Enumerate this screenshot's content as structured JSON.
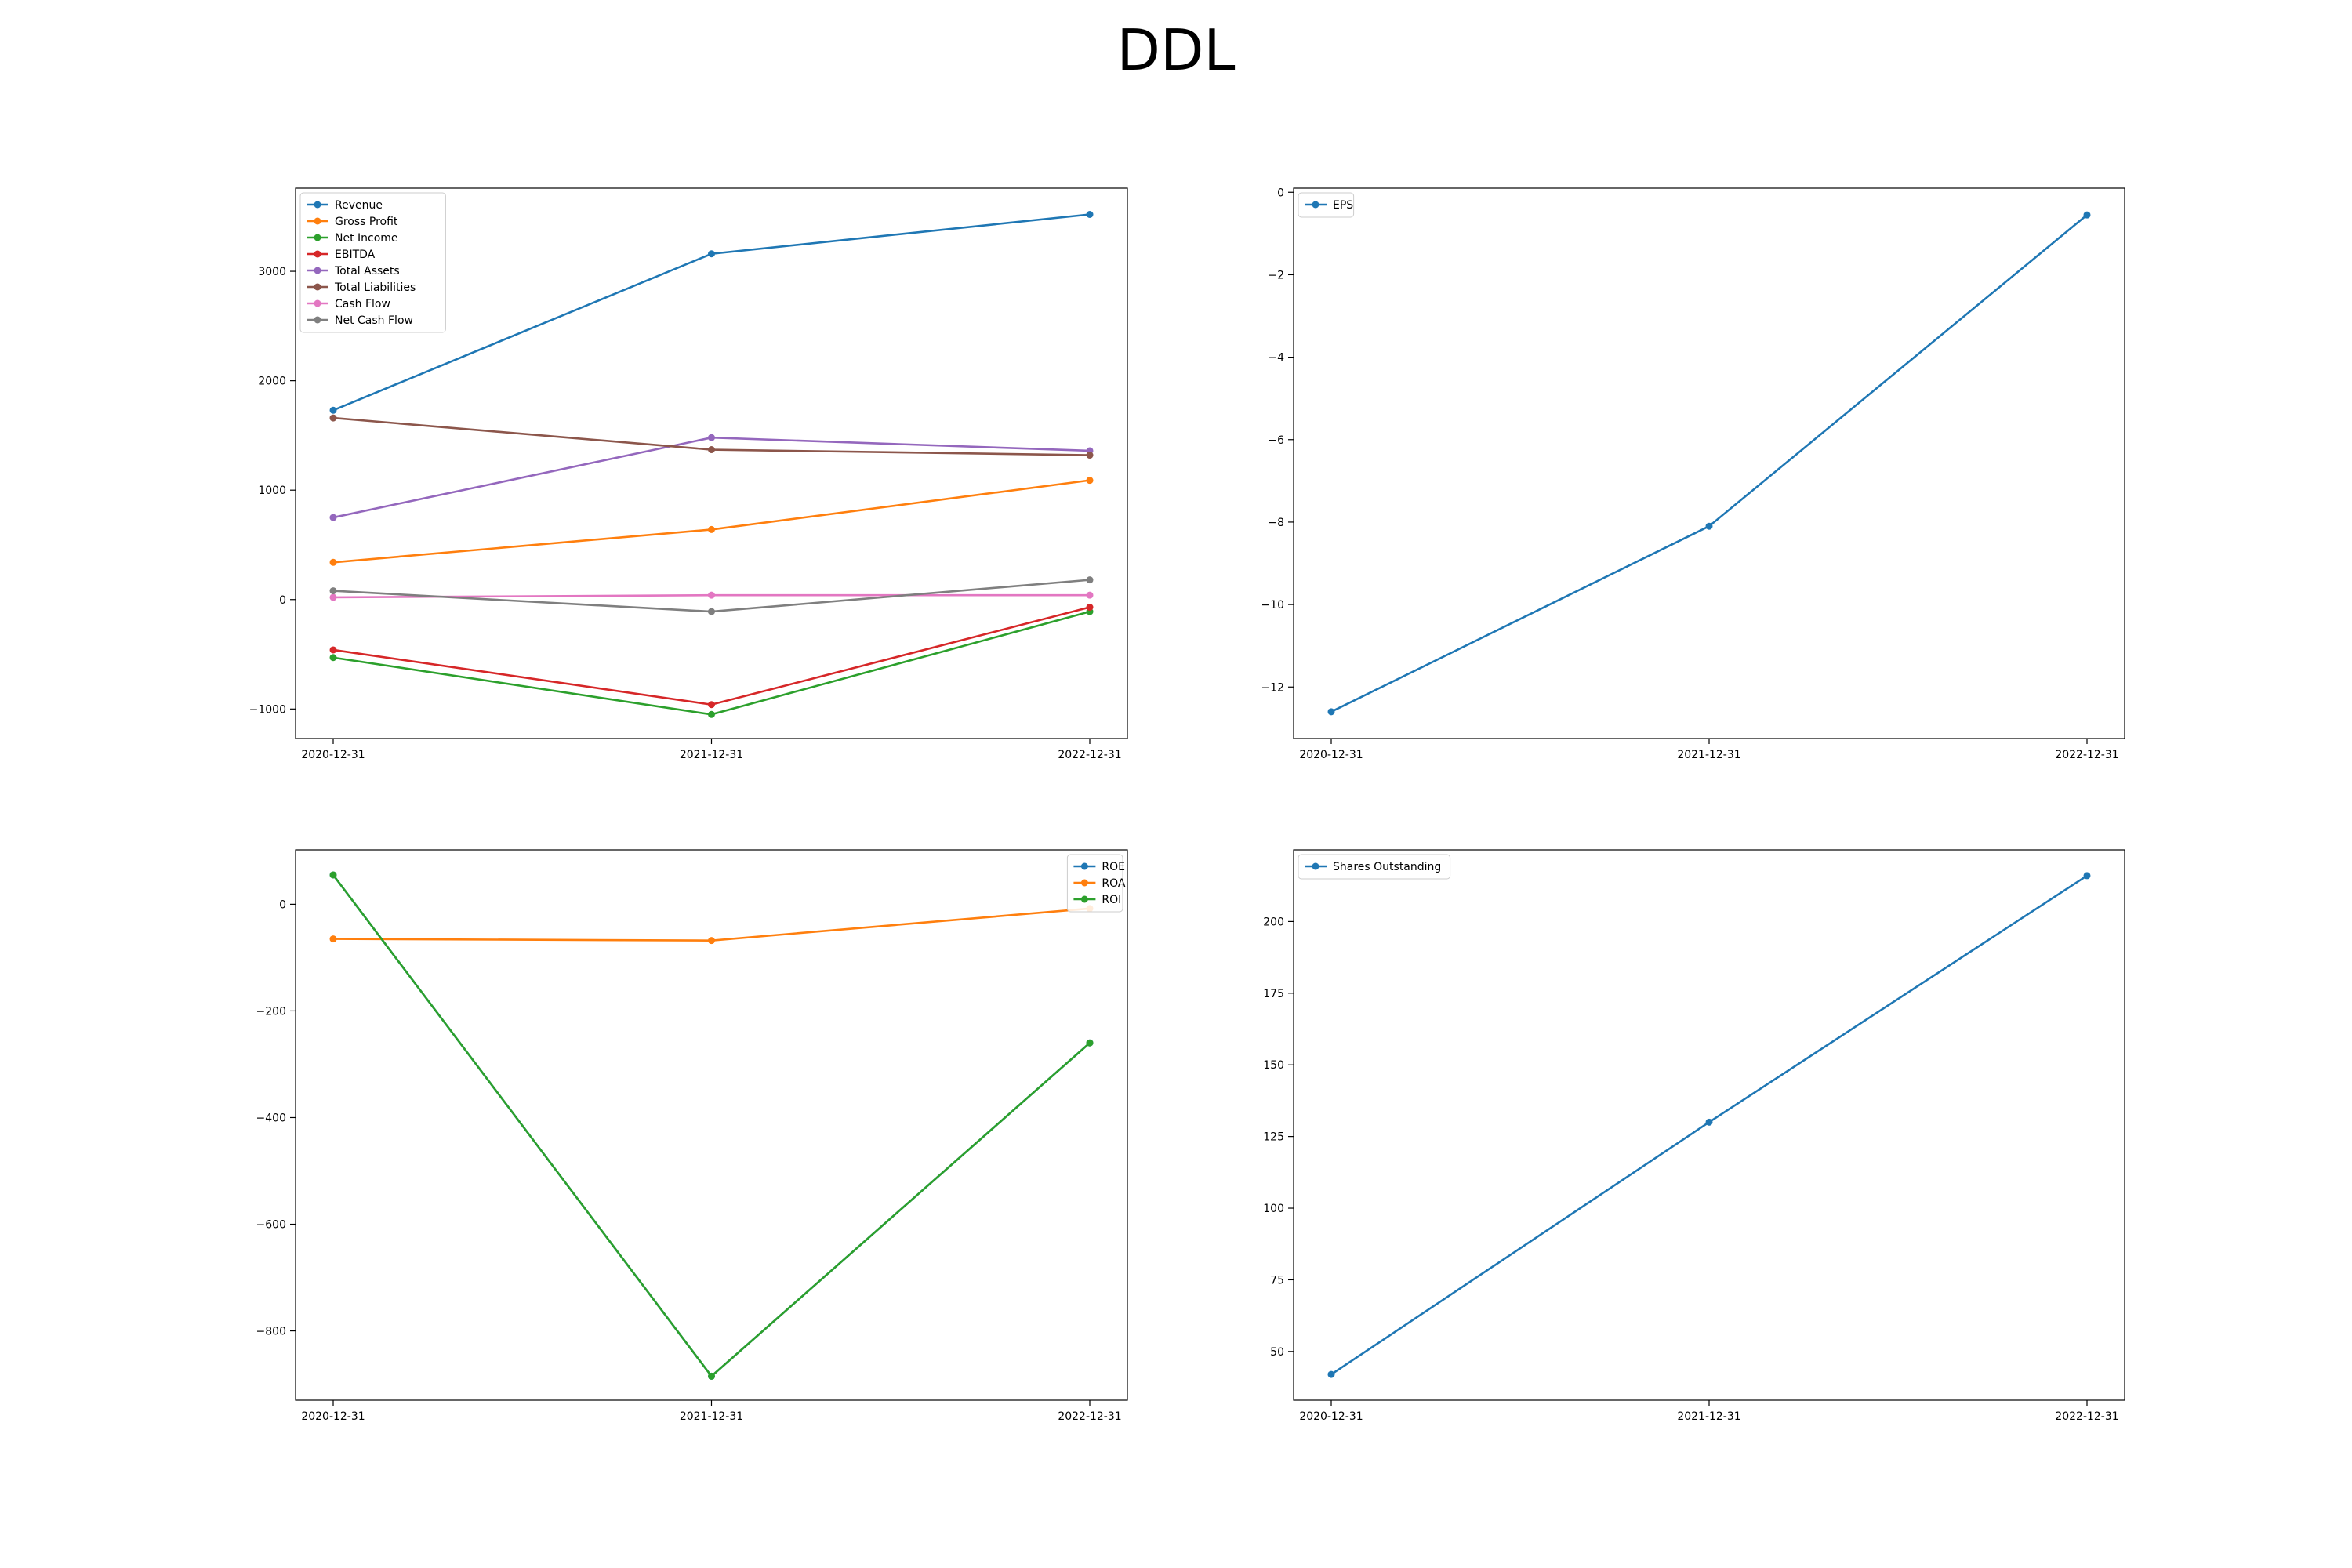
{
  "title": "DDL",
  "chart_data": [
    {
      "type": "line",
      "categories": [
        "2020-12-31",
        "2021-12-31",
        "2022-12-31"
      ],
      "ylim": [
        -1270,
        3760
      ],
      "yticks": [
        -1000,
        0,
        1000,
        2000,
        3000
      ],
      "legend": "upper left",
      "grid": false,
      "series": [
        {
          "name": "Revenue",
          "color": "#1f77b4",
          "values": [
            1730,
            3160,
            3520
          ]
        },
        {
          "name": "Gross Profit",
          "color": "#ff7f0e",
          "values": [
            340,
            640,
            1090
          ]
        },
        {
          "name": "Net Income",
          "color": "#2ca02c",
          "values": [
            -530,
            -1050,
            -110
          ]
        },
        {
          "name": "EBITDA",
          "color": "#d62728",
          "values": [
            -460,
            -960,
            -70
          ]
        },
        {
          "name": "Total Assets",
          "color": "#9467bd",
          "values": [
            750,
            1480,
            1360
          ]
        },
        {
          "name": "Total Liabilities",
          "color": "#8c564b",
          "values": [
            1660,
            1370,
            1320
          ]
        },
        {
          "name": "Cash Flow",
          "color": "#e377c2",
          "values": [
            20,
            40,
            40
          ]
        },
        {
          "name": "Net Cash Flow",
          "color": "#7f7f7f",
          "values": [
            80,
            -110,
            180
          ]
        }
      ]
    },
    {
      "type": "line",
      "categories": [
        "2020-12-31",
        "2021-12-31",
        "2022-12-31"
      ],
      "ylim": [
        -13.25,
        0.1
      ],
      "yticks": [
        -12,
        -10,
        -8,
        -6,
        -4,
        -2,
        0
      ],
      "legend": "upper left",
      "grid": false,
      "series": [
        {
          "name": "EPS",
          "color": "#1f77b4",
          "values": [
            -12.6,
            -8.1,
            -0.55
          ]
        }
      ]
    },
    {
      "type": "line",
      "categories": [
        "2020-12-31",
        "2021-12-31",
        "2022-12-31"
      ],
      "ylim": [
        -930,
        102
      ],
      "yticks": [
        -800,
        -600,
        -400,
        -200,
        0
      ],
      "legend": "upper right",
      "grid": false,
      "series": [
        {
          "name": "ROE",
          "color": "#1f77b4",
          "values": [
            55,
            -885,
            -260
          ]
        },
        {
          "name": "ROA",
          "color": "#ff7f0e",
          "values": [
            -65,
            -68,
            -8
          ]
        },
        {
          "name": "ROI",
          "color": "#2ca02c",
          "values": [
            55,
            -885,
            -260
          ]
        }
      ]
    },
    {
      "type": "line",
      "categories": [
        "2020-12-31",
        "2021-12-31",
        "2022-12-31"
      ],
      "ylim": [
        33,
        225
      ],
      "yticks": [
        50,
        75,
        100,
        125,
        150,
        175,
        200
      ],
      "legend": "upper left",
      "grid": false,
      "series": [
        {
          "name": "Shares Outstanding",
          "color": "#1f77b4",
          "values": [
            42,
            130,
            216
          ]
        }
      ]
    }
  ]
}
